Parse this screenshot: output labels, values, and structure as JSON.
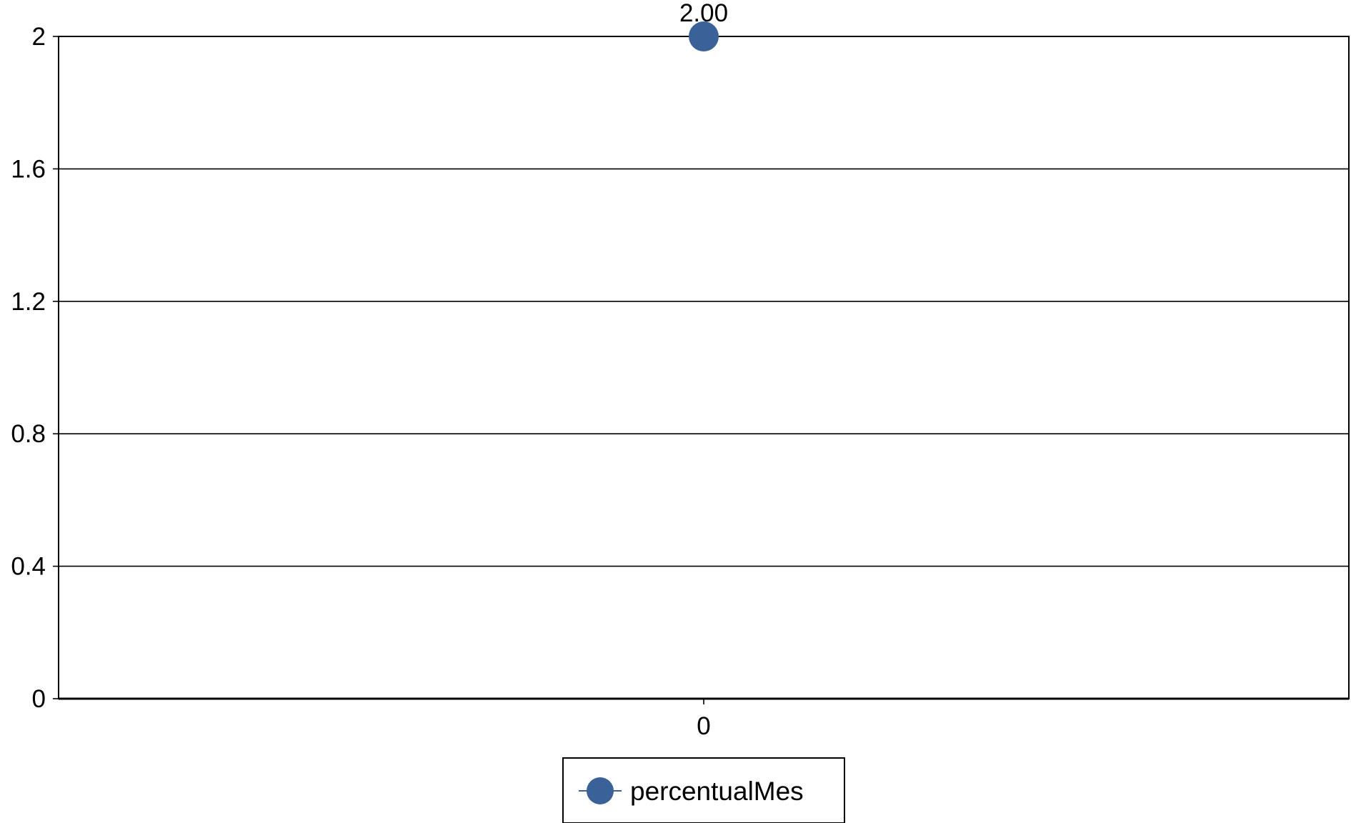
{
  "chart_data": {
    "type": "line",
    "categories": [
      "0"
    ],
    "series": [
      {
        "name": "percentualMes",
        "values": [
          2.0
        ],
        "data_labels": [
          "2.00"
        ],
        "color": "#3a6198"
      }
    ],
    "ylim": [
      0,
      2
    ],
    "yticks": [
      0,
      0.4,
      0.8,
      1.2,
      1.6,
      2
    ],
    "ytick_labels": [
      "0",
      "0.4",
      "0.8",
      "1.2",
      "1.6",
      "2"
    ],
    "xtick_labels": [
      "0"
    ],
    "grid": true,
    "legend_position": "bottom-center"
  }
}
